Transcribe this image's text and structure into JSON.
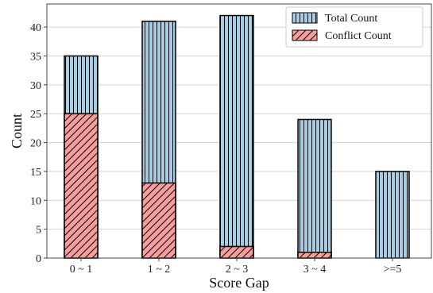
{
  "chart_data": {
    "type": "bar",
    "categories": [
      "0 ~ 1",
      "1 ~ 2",
      "2 ~ 3",
      "3 ~ 4",
      ">=5"
    ],
    "series": [
      {
        "name": "Total Count",
        "values": [
          35,
          41,
          42,
          24,
          15
        ],
        "color": "#a6cde2",
        "hatch": "vertical-lines"
      },
      {
        "name": "Conflict Count",
        "values": [
          25,
          13,
          2,
          1,
          0
        ],
        "color": "#f79d9b",
        "hatch": "diagonal-lines"
      }
    ],
    "xlabel": "Score Gap",
    "ylabel": "Count",
    "ylim": [
      0,
      44
    ],
    "yticks": [
      0,
      5,
      10,
      15,
      20,
      25,
      30,
      35,
      40
    ],
    "grid": "horizontal",
    "legend": "top-right",
    "overlay": true
  }
}
